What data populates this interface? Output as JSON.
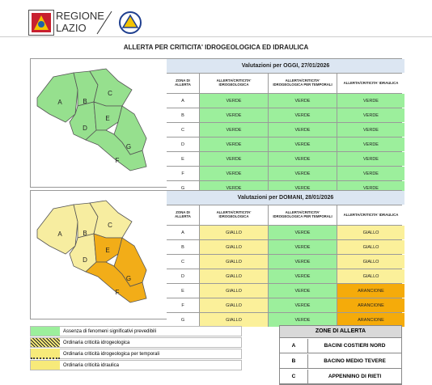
{
  "header": {
    "logo_line1": "REGIONE",
    "logo_line2": "LAZIO"
  },
  "title": "ALLERTA PER CRITICITA' IDROGEOLOGICA ED IDRAULICA",
  "panels": [
    {
      "heading": "Valutazioni per OGGI, 27/01/2026",
      "columns": [
        "ZONA DI ALLERTA",
        "ALLERTA/CRITICITA' IDROGEOLOGICA",
        "ALLERTA/CRITICITA' IDROGEOLOGICA PER TEMPORALI",
        "ALLERTA/CRITICITA' IDRAULICA"
      ],
      "rows": [
        {
          "zone": "A",
          "values": [
            "VERDE",
            "VERDE",
            "VERDE"
          ]
        },
        {
          "zone": "B",
          "values": [
            "VERDE",
            "VERDE",
            "VERDE"
          ]
        },
        {
          "zone": "C",
          "values": [
            "VERDE",
            "VERDE",
            "VERDE"
          ]
        },
        {
          "zone": "D",
          "values": [
            "VERDE",
            "VERDE",
            "VERDE"
          ]
        },
        {
          "zone": "E",
          "values": [
            "VERDE",
            "VERDE",
            "VERDE"
          ]
        },
        {
          "zone": "F",
          "values": [
            "VERDE",
            "VERDE",
            "VERDE"
          ]
        },
        {
          "zone": "G",
          "values": [
            "VERDE",
            "VERDE",
            "VERDE"
          ]
        }
      ]
    },
    {
      "heading": "Valutazioni per DOMANI, 28/01/2026",
      "columns": [
        "ZONA DI ALLERTA",
        "ALLERTA/CRITICITA' IDROGEOLOGICA",
        "ALLERTA/CRITICITA' IDROGEOLOGICA PER TEMPORALI",
        "ALLERTA/CRITICITA' IDRAULICA"
      ],
      "rows": [
        {
          "zone": "A",
          "values": [
            "GIALLO",
            "VERDE",
            "GIALLO"
          ]
        },
        {
          "zone": "B",
          "values": [
            "GIALLO",
            "VERDE",
            "GIALLO"
          ]
        },
        {
          "zone": "C",
          "values": [
            "GIALLO",
            "VERDE",
            "GIALLO"
          ]
        },
        {
          "zone": "D",
          "values": [
            "GIALLO",
            "VERDE",
            "GIALLO"
          ]
        },
        {
          "zone": "E",
          "values": [
            "GIALLO",
            "VERDE",
            "ARANCIONE"
          ]
        },
        {
          "zone": "F",
          "values": [
            "GIALLO",
            "VERDE",
            "ARANCIONE"
          ]
        },
        {
          "zone": "G",
          "values": [
            "GIALLO",
            "VERDE",
            "ARANCIONE"
          ]
        }
      ]
    }
  ],
  "legend": [
    "Assenza di fenomeni significativi prevedibili",
    "Ordinaria criticità idrogeologica",
    "Ordinaria criticità idrogeologica per temporali",
    "Ordinaria criticità idraulica"
  ],
  "zones_table": {
    "heading": "ZONE DI ALLERTA",
    "rows": [
      {
        "code": "A",
        "name": "BACINI COSTIERI NORD"
      },
      {
        "code": "B",
        "name": "BACINO MEDIO TEVERE"
      },
      {
        "code": "C",
        "name": "APPENNINO DI RIETI"
      }
    ]
  }
}
